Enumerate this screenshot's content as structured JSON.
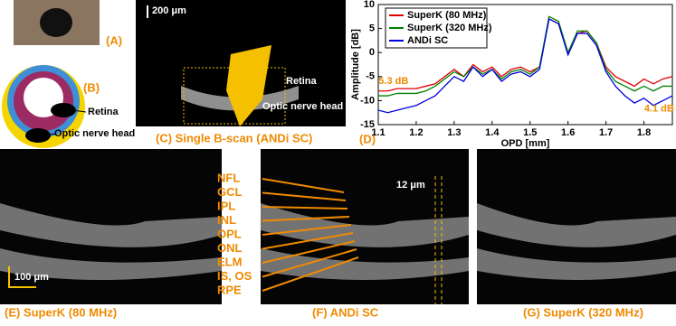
{
  "panels": {
    "a": {
      "label": "(A)"
    },
    "b": {
      "label": "(B)",
      "retina": "Retina",
      "onh": "Optic nerve head"
    },
    "c": {
      "label": "(C) Single B-scan (ANDi SC)",
      "scale": "200 μm",
      "retina": "Retina",
      "onh": "Optic nerve head"
    },
    "d": {
      "label": "(D)"
    },
    "e": {
      "label": "(E)  SuperK (80 MHz)",
      "scale": "100 μm"
    },
    "f": {
      "label": "(F)  ANDi SC",
      "resolution": "12 μm",
      "layers": [
        "NFL",
        "GCL",
        "IPL",
        "INL",
        "OPL",
        "ONL",
        "ELM",
        "IS, OS",
        "RPE"
      ]
    },
    "g": {
      "label": "(G)  SuperK (320 MHz)"
    }
  },
  "chart_data": {
    "type": "line",
    "xlabel": "OPD [mm]",
    "ylabel": "Amplitude [dB]",
    "x": [
      1.1,
      1.125,
      1.15,
      1.175,
      1.2,
      1.225,
      1.25,
      1.275,
      1.3,
      1.325,
      1.35,
      1.375,
      1.4,
      1.425,
      1.45,
      1.475,
      1.5,
      1.525,
      1.55,
      1.575,
      1.6,
      1.625,
      1.65,
      1.675,
      1.7,
      1.725,
      1.75,
      1.775,
      1.8,
      1.825,
      1.85,
      1.875
    ],
    "series": [
      {
        "name": "SuperK (80 MHz)",
        "color": "#e00000",
        "values": [
          -8,
          -8,
          -7.5,
          -7.5,
          -7.5,
          -7,
          -6.5,
          -5,
          -3.5,
          -5,
          -2.5,
          -4,
          -3,
          -5,
          -3.5,
          -3,
          -4,
          -3,
          7,
          6,
          0,
          4,
          4.5,
          2,
          -3,
          -5,
          -6,
          -7,
          -5.5,
          -6.5,
          -5.5,
          -5
        ]
      },
      {
        "name": "SuperK (320 MHz)",
        "color": "#008000",
        "values": [
          -9,
          -9,
          -8.5,
          -8.5,
          -8.5,
          -8,
          -7,
          -5.5,
          -4,
          -5,
          -3,
          -4.5,
          -3.5,
          -5.5,
          -4,
          -3.5,
          -4.5,
          -3,
          7.5,
          6.5,
          0,
          4.5,
          4.5,
          2,
          -3.5,
          -6,
          -7,
          -8,
          -7,
          -8,
          -7,
          -7
        ]
      },
      {
        "name": "ANDi SC",
        "color": "#0000e0",
        "values": [
          -12,
          -12.5,
          -12,
          -11.5,
          -11,
          -10,
          -9,
          -7,
          -5,
          -6,
          -3,
          -5,
          -3.5,
          -6,
          -4.5,
          -4,
          -5,
          -3.5,
          7,
          6,
          -0.5,
          4,
          4,
          1.5,
          -4,
          -7,
          -9,
          -10.5,
          -9.5,
          -11,
          -10,
          -9
        ]
      }
    ],
    "xlim": [
      1.1,
      1.875
    ],
    "ylim": [
      -15,
      10
    ],
    "xticks": [
      1.1,
      1.2,
      1.3,
      1.4,
      1.5,
      1.6,
      1.7,
      1.8
    ],
    "yticks": [
      -15,
      -10,
      -5,
      0,
      5,
      10
    ],
    "annotations": [
      {
        "text": "5.3 dB",
        "x": 1.14,
        "y": -6
      },
      {
        "text": "4.1 dB",
        "x": 1.84,
        "y": -11.7
      }
    ],
    "legend": "upper left"
  }
}
